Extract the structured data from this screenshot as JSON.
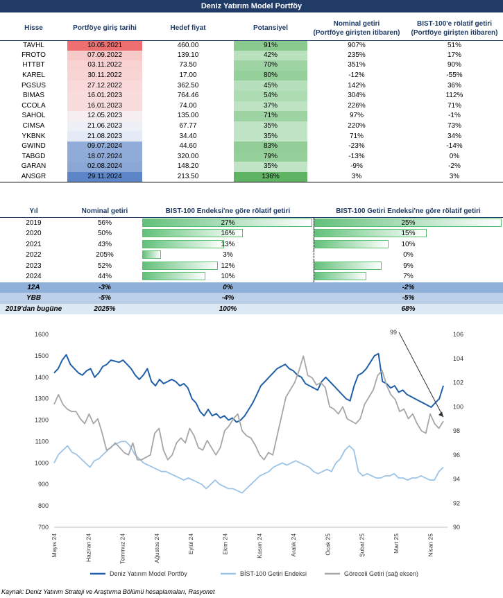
{
  "title": "Deniz Yatırım Model Portföy",
  "portfolio_table": {
    "headers": [
      "Hisse",
      "Portföye giriş tarihi",
      "Hedef fiyat",
      "Potansiyel",
      "Nominal getiri\n(Portföye girişten itibaren)",
      "BIST-100'e rölatif getiri\n(Portföye girişten itibaren)"
    ],
    "rows": [
      {
        "stock": "TAVHL",
        "date": "10.05.2021",
        "target": "460.00",
        "potential": "91%",
        "potential_value": 91,
        "nominal": "907%",
        "relative": "51%",
        "date_color": "#ee6f6f"
      },
      {
        "stock": "FROTO",
        "date": "07.09.2022",
        "target": "139.10",
        "potential": "42%",
        "potential_value": 42,
        "nominal": "235%",
        "relative": "17%",
        "date_color": "#f7c9c9"
      },
      {
        "stock": "HTTBT",
        "date": "03.11.2022",
        "target": "73.50",
        "potential": "70%",
        "potential_value": 70,
        "nominal": "351%",
        "relative": "90%",
        "date_color": "#f8d2d2"
      },
      {
        "stock": "KAREL",
        "date": "30.11.2022",
        "target": "17.00",
        "potential": "80%",
        "potential_value": 80,
        "nominal": "-12%",
        "relative": "-55%",
        "date_color": "#f8d4d4"
      },
      {
        "stock": "PGSUS",
        "date": "27.12.2022",
        "target": "362.50",
        "potential": "45%",
        "potential_value": 45,
        "nominal": "142%",
        "relative": "36%",
        "date_color": "#f9d9d9"
      },
      {
        "stock": "BIMAS",
        "date": "16.01.2023",
        "target": "764.46",
        "potential": "54%",
        "potential_value": 54,
        "nominal": "304%",
        "relative": "112%",
        "date_color": "#f9dddd"
      },
      {
        "stock": "CCOLA",
        "date": "16.01.2023",
        "target": "74.00",
        "potential": "37%",
        "potential_value": 37,
        "nominal": "226%",
        "relative": "71%",
        "date_color": "#f9dddd"
      },
      {
        "stock": "SAHOL",
        "date": "12.05.2023",
        "target": "135.00",
        "potential": "71%",
        "potential_value": 71,
        "nominal": "97%",
        "relative": "-1%",
        "date_color": "#f7eef2"
      },
      {
        "stock": "CIMSA",
        "date": "21.06.2023",
        "target": "67.77",
        "potential": "35%",
        "potential_value": 35,
        "nominal": "220%",
        "relative": "73%",
        "date_color": "#eef0f7"
      },
      {
        "stock": "YKBNK",
        "date": "21.08.2023",
        "target": "34.40",
        "potential": "35%",
        "potential_value": 35,
        "nominal": "71%",
        "relative": "34%",
        "date_color": "#e4ebf6"
      },
      {
        "stock": "GWIND",
        "date": "09.07.2024",
        "target": "44.60",
        "potential": "83%",
        "potential_value": 83,
        "nominal": "-23%",
        "relative": "-14%",
        "date_color": "#91acd8"
      },
      {
        "stock": "TABGD",
        "date": "18.07.2024",
        "target": "320.00",
        "potential": "79%",
        "potential_value": 79,
        "nominal": "-13%",
        "relative": "0%",
        "date_color": "#8fabd8"
      },
      {
        "stock": "GARAN",
        "date": "02.08.2024",
        "target": "148.20",
        "potential": "35%",
        "potential_value": 35,
        "nominal": "-9%",
        "relative": "-2%",
        "date_color": "#8aa7d6"
      },
      {
        "stock": "ANSGR",
        "date": "29.11.2024",
        "target": "213.50",
        "potential": "136%",
        "potential_value": 136,
        "nominal": "3%",
        "relative": "3%",
        "date_color": "#5d86c8"
      }
    ]
  },
  "yearly_table": {
    "headers": [
      "Yıl",
      "Nominal getiri",
      "BIST-100 Endeksi'ne göre rölatif getiri",
      "BIST-100 Getiri Endeksi'ne göre rölatif getiri"
    ],
    "rows": [
      {
        "year": "2019",
        "nominal": "56%",
        "rel_index": "27%",
        "rel_index_value": 27,
        "rel_return": "25%",
        "rel_return_value": 25
      },
      {
        "year": "2020",
        "nominal": "50%",
        "rel_index": "16%",
        "rel_index_value": 16,
        "rel_return": "15%",
        "rel_return_value": 15
      },
      {
        "year": "2021",
        "nominal": "43%",
        "rel_index": "13%",
        "rel_index_value": 13,
        "rel_return": "10%",
        "rel_return_value": 10
      },
      {
        "year": "2022",
        "nominal": "205%",
        "rel_index": "3%",
        "rel_index_value": 3,
        "rel_return": "0%",
        "rel_return_value": -0.3
      },
      {
        "year": "2023",
        "nominal": "52%",
        "rel_index": "12%",
        "rel_index_value": 12,
        "rel_return": "9%",
        "rel_return_value": 9
      },
      {
        "year": "2024",
        "nominal": "44%",
        "rel_index": "10%",
        "rel_index_value": 10,
        "rel_return": "7%",
        "rel_return_value": 7
      }
    ],
    "summary": [
      {
        "year": "12A",
        "nominal": "-3%",
        "rel_index": "0%",
        "rel_return": "-2%"
      },
      {
        "year": "YBB",
        "nominal": "-5%",
        "rel_index": "-4%",
        "rel_return": "-5%"
      },
      {
        "year": "2019'dan bugüne",
        "nominal": "2025%",
        "rel_index": "100%",
        "rel_return": "68%"
      }
    ]
  },
  "chart_data": {
    "type": "line",
    "x_labels": [
      "Mayıs 24",
      "Haziran 24",
      "Temmuz 24",
      "Ağustos 24",
      "Eylül 24",
      "Ekim 24",
      "Kasım 24",
      "Aralık 24",
      "Ocak 25",
      "Şubat 25",
      "Mart 25",
      "Nisan 25"
    ],
    "ylim_left": [
      700,
      1600
    ],
    "yticks_left": [
      700,
      800,
      900,
      1000,
      1100,
      1200,
      1300,
      1400,
      1500,
      1600
    ],
    "ylim_right": [
      90,
      106
    ],
    "yticks_right": [
      90,
      92,
      94,
      96,
      98,
      100,
      102,
      104,
      106
    ],
    "annotation": "99",
    "series": [
      {
        "name": "Deniz Yatırım Model Portföy",
        "axis": "left",
        "color": "#1f5fa8",
        "values": [
          1420,
          1440,
          1480,
          1505,
          1460,
          1440,
          1420,
          1410,
          1430,
          1440,
          1400,
          1420,
          1450,
          1460,
          1480,
          1475,
          1470,
          1480,
          1460,
          1440,
          1410,
          1390,
          1410,
          1440,
          1380,
          1360,
          1390,
          1370,
          1380,
          1390,
          1380,
          1360,
          1370,
          1350,
          1300,
          1280,
          1240,
          1220,
          1250,
          1220,
          1230,
          1210,
          1220,
          1200,
          1210,
          1190,
          1200,
          1220,
          1250,
          1280,
          1320,
          1360,
          1380,
          1400,
          1420,
          1440,
          1450,
          1460,
          1440,
          1430,
          1410,
          1400,
          1370,
          1360,
          1350,
          1340,
          1380,
          1400,
          1380,
          1360,
          1340,
          1320,
          1300,
          1290,
          1360,
          1410,
          1420,
          1440,
          1470,
          1500,
          1510,
          1380,
          1370,
          1350,
          1360,
          1330,
          1340,
          1320,
          1310,
          1300,
          1290,
          1280,
          1270,
          1260,
          1280,
          1300,
          1360
        ]
      },
      {
        "name": "BİST-100 Getiri Endeksi",
        "axis": "left",
        "color": "#9cc3e6",
        "values": [
          1000,
          1040,
          1060,
          1080,
          1050,
          1040,
          1020,
          1000,
          980,
          1010,
          1020,
          1040,
          1060,
          1080,
          1090,
          1100,
          1100,
          1080,
          1040,
          1020,
          1000,
          990,
          980,
          970,
          960,
          960,
          950,
          940,
          930,
          920,
          930,
          920,
          910,
          900,
          880,
          900,
          920,
          900,
          890,
          880,
          880,
          870,
          860,
          880,
          900,
          920,
          940,
          950,
          960,
          980,
          990,
          1000,
          990,
          1000,
          1010,
          1000,
          990,
          980,
          960,
          950,
          960,
          970,
          960,
          1000,
          1020,
          1060,
          1080,
          1060,
          960,
          940,
          950,
          940,
          930,
          930,
          940,
          940,
          950,
          930,
          930,
          920,
          930,
          930,
          940,
          930,
          920,
          920,
          960,
          980
        ]
      },
      {
        "name": "Göreceli Getiri (sağ eksen)",
        "axis": "right",
        "color": "#a6a6a6",
        "values": [
          100.2,
          101,
          100.2,
          99.8,
          99.6,
          99.6,
          99.0,
          98.6,
          99.4,
          98.6,
          99.0,
          97.8,
          96.4,
          96.6,
          97.0,
          96.6,
          96.2,
          96.0,
          97.0,
          95.6,
          95.6,
          95.8,
          96.0,
          97.8,
          98.2,
          96.4,
          95.6,
          96.0,
          97.0,
          97.4,
          97.0,
          98.2,
          97.6,
          96.6,
          96.4,
          97.2,
          96.6,
          96.0,
          96.6,
          98.0,
          98.4,
          99.0,
          99.4,
          98.0,
          97.6,
          97.4,
          96.8,
          96.0,
          95.6,
          96.2,
          96.0,
          97.6,
          99.2,
          100.8,
          101.4,
          102.0,
          103.0,
          104.2,
          102.6,
          102.4,
          101.8,
          102.0,
          101.6,
          100.0,
          99.8,
          99.4,
          100.0,
          99.0,
          98.8,
          98.6,
          99.0,
          100.2,
          100.8,
          101.4,
          102.6,
          103.0,
          101.8,
          101.0,
          100.6,
          99.6,
          99.8,
          99.0,
          99.4,
          98.6,
          98.0,
          97.8,
          99.4,
          98.6,
          98.2,
          98.8
        ]
      }
    ]
  },
  "source": "Kaynak: Deniz Yatırım Strateji ve Araştırma Bölümü hesaplamaları, Rasyonet"
}
